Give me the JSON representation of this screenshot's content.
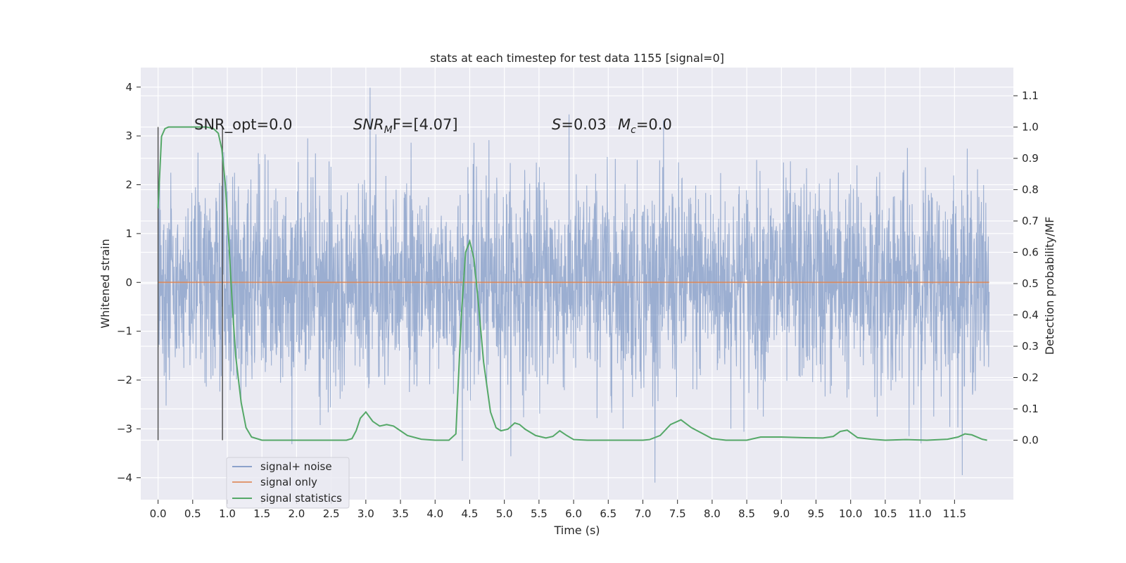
{
  "chart_data": {
    "type": "line",
    "title": "stats at each timestep for test data 1155 [signal=0]",
    "xlabel": "Time (s)",
    "ylabel_left": "Whitened strain",
    "ylabel_right": "Detection probability/MF",
    "xlim": [
      -0.25,
      12.35
    ],
    "ylim_left": [
      -4.45,
      4.4
    ],
    "ylim_right": [
      -0.19,
      1.19
    ],
    "x_ticks": [
      "0.0",
      "0.5",
      "1.0",
      "1.5",
      "2.0",
      "2.5",
      "3.0",
      "3.5",
      "4.0",
      "4.5",
      "5.0",
      "5.5",
      "6.0",
      "6.5",
      "7.0",
      "7.5",
      "8.0",
      "8.5",
      "9.0",
      "9.5",
      "10.0",
      "10.5",
      "11.0",
      "11.5"
    ],
    "y_ticks_left": [
      "4",
      "3",
      "2",
      "1",
      "0",
      "−1",
      "−2",
      "−3",
      "−4"
    ],
    "y_ticks_right": [
      "1.1",
      "1.0",
      "0.9",
      "0.8",
      "0.7",
      "0.6",
      "0.5",
      "0.4",
      "0.3",
      "0.2",
      "0.1",
      "0.0"
    ],
    "grid": true,
    "legend_position": "lower-left",
    "colors": {
      "background": "#eaeaf2",
      "grid": "#ffffff",
      "noise": "#4c72b0",
      "signal_only": "#dd8452",
      "statistics": "#55a868",
      "vline": "#555555"
    },
    "annotations": [
      {
        "label": "SNR_opt=0.0"
      },
      {
        "label": "SNR_MF=[4.07]",
        "main": "SNR",
        "sub": "M",
        "rest": "F=[4.07]"
      },
      {
        "label": "S=0.03",
        "main": "S",
        "rest": "=0.03"
      },
      {
        "label": "M_c=0.0",
        "main": "M",
        "sub": "c",
        "rest": "=0.0"
      }
    ],
    "window_markers_s": [
      0.0,
      0.93
    ],
    "series": [
      {
        "name": "signal+ noise",
        "axis": "left",
        "description": "noisy whitened strain, approx. range -4.1 to 4.0, duration 0–12 s",
        "t_start": 0.0,
        "t_end": 12.0
      },
      {
        "name": "signal only",
        "axis": "left",
        "x": [
          0.0,
          12.0
        ],
        "y": [
          0.0,
          0.0
        ]
      },
      {
        "name": "signal statistics",
        "axis": "right",
        "x": [
          0.0,
          0.05,
          0.1,
          0.15,
          0.2,
          0.3,
          0.5,
          0.7,
          0.8,
          0.87,
          0.92,
          0.97,
          1.02,
          1.07,
          1.12,
          1.2,
          1.27,
          1.35,
          1.5,
          2.0,
          2.5,
          2.72,
          2.8,
          2.86,
          2.92,
          3.0,
          3.1,
          3.2,
          3.3,
          3.4,
          3.5,
          3.6,
          3.8,
          4.0,
          4.2,
          4.3,
          4.38,
          4.44,
          4.5,
          4.56,
          4.62,
          4.7,
          4.8,
          4.88,
          4.95,
          5.05,
          5.15,
          5.22,
          5.3,
          5.45,
          5.6,
          5.7,
          5.8,
          5.9,
          6.0,
          6.2,
          6.6,
          7.0,
          7.1,
          7.25,
          7.4,
          7.55,
          7.7,
          8.0,
          8.2,
          8.5,
          8.7,
          9.0,
          9.3,
          9.6,
          9.75,
          9.85,
          9.95,
          10.1,
          10.3,
          10.5,
          10.8,
          11.1,
          11.4,
          11.55,
          11.65,
          11.75,
          11.9,
          11.97
        ],
        "y": [
          0.74,
          0.97,
          0.995,
          1.0,
          1.0,
          1.0,
          1.0,
          1.0,
          0.995,
          0.98,
          0.93,
          0.82,
          0.64,
          0.44,
          0.27,
          0.12,
          0.04,
          0.01,
          0.0,
          0.0,
          0.0,
          0.0,
          0.005,
          0.03,
          0.07,
          0.09,
          0.06,
          0.045,
          0.05,
          0.045,
          0.03,
          0.015,
          0.003,
          0.0,
          0.0,
          0.02,
          0.4,
          0.6,
          0.635,
          0.58,
          0.45,
          0.25,
          0.09,
          0.04,
          0.03,
          0.035,
          0.055,
          0.05,
          0.035,
          0.015,
          0.007,
          0.012,
          0.03,
          0.015,
          0.002,
          0.0,
          0.0,
          0.0,
          0.002,
          0.015,
          0.05,
          0.065,
          0.04,
          0.005,
          0.0,
          0.0,
          0.01,
          0.01,
          0.008,
          0.007,
          0.012,
          0.028,
          0.032,
          0.008,
          0.003,
          0.0,
          0.002,
          0.0,
          0.003,
          0.01,
          0.02,
          0.017,
          0.003,
          0.0
        ]
      }
    ]
  }
}
